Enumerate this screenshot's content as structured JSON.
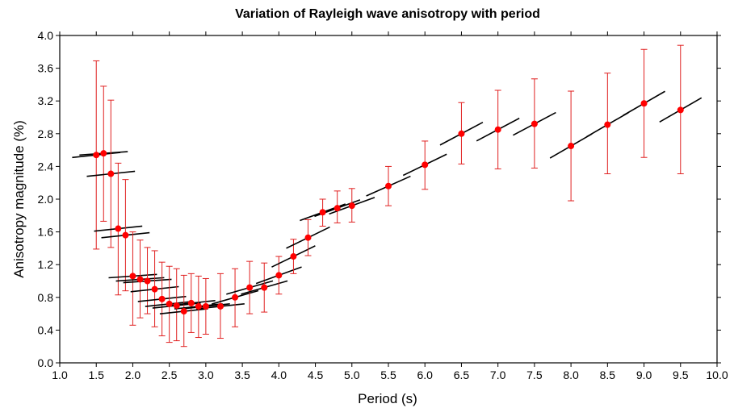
{
  "chart_data": {
    "type": "scatter",
    "title": "Variation of Rayleigh wave anisotropy with period",
    "xlabel": "Period (s)",
    "ylabel": "Anisotropy magnitude (%)",
    "xlim": [
      1.0,
      10.0
    ],
    "ylim": [
      0.0,
      4.0
    ],
    "x_ticks": [
      "1.0",
      "1.5",
      "2.0",
      "2.5",
      "3.0",
      "3.5",
      "4.0",
      "4.5",
      "5.0",
      "5.5",
      "6.0",
      "6.5",
      "7.0",
      "7.5",
      "8.0",
      "8.5",
      "9.0",
      "9.5",
      "10.0"
    ],
    "y_ticks": [
      "0.0",
      "0.4",
      "0.8",
      "1.2",
      "1.6",
      "2.0",
      "2.4",
      "2.8",
      "3.2",
      "3.6",
      "4.0"
    ],
    "grid": false,
    "colors": {
      "points": "#ff0000",
      "error_bars": "#e02020",
      "fast_axis_bars": "#000000"
    },
    "series": [
      {
        "x": [
          1.5,
          1.6,
          1.7,
          1.8,
          1.9,
          2.0,
          2.1,
          2.2,
          2.3,
          2.4,
          2.5,
          2.6,
          2.7,
          2.8,
          2.9,
          3.0,
          3.2,
          3.4,
          3.6,
          3.8,
          4.0,
          4.2,
          4.4,
          4.6,
          4.8,
          5.0,
          5.5,
          6.0,
          6.5,
          7.0,
          7.5,
          8.0,
          8.5,
          9.0,
          9.5
        ],
        "y": [
          2.54,
          2.56,
          2.31,
          1.64,
          1.56,
          1.06,
          1.02,
          1.0,
          0.9,
          0.78,
          0.72,
          0.7,
          0.63,
          0.73,
          0.69,
          0.69,
          0.69,
          0.8,
          0.92,
          0.92,
          1.07,
          1.3,
          1.53,
          1.84,
          1.89,
          1.92,
          2.16,
          2.42,
          2.8,
          2.85,
          2.92,
          2.65,
          2.91,
          3.17,
          3.09
        ],
        "y_upper": [
          3.69,
          3.38,
          3.21,
          2.44,
          2.24,
          1.6,
          1.5,
          1.41,
          1.37,
          1.23,
          1.18,
          1.15,
          1.07,
          1.09,
          1.06,
          1.03,
          1.09,
          1.15,
          1.24,
          1.22,
          1.3,
          1.51,
          1.75,
          2.0,
          2.1,
          2.13,
          2.4,
          2.71,
          3.18,
          3.33,
          3.47,
          3.32,
          3.54,
          3.83,
          3.88
        ],
        "y_lower": [
          1.39,
          1.73,
          1.41,
          0.83,
          0.88,
          0.46,
          0.55,
          0.6,
          0.44,
          0.33,
          0.25,
          0.27,
          0.2,
          0.37,
          0.31,
          0.35,
          0.3,
          0.44,
          0.6,
          0.62,
          0.84,
          1.09,
          1.31,
          1.67,
          1.71,
          1.72,
          1.92,
          2.12,
          2.43,
          2.37,
          2.38,
          1.98,
          2.31,
          2.51,
          2.31
        ],
        "fast_axis_deg": [
          6,
          4,
          6,
          6,
          6,
          4,
          4,
          4,
          6,
          6,
          6,
          6,
          6,
          6,
          6,
          6,
          6,
          16,
          16,
          16,
          20,
          26,
          26,
          20,
          20,
          20,
          24,
          26,
          28,
          28,
          28,
          30,
          30,
          30,
          30
        ]
      }
    ]
  }
}
